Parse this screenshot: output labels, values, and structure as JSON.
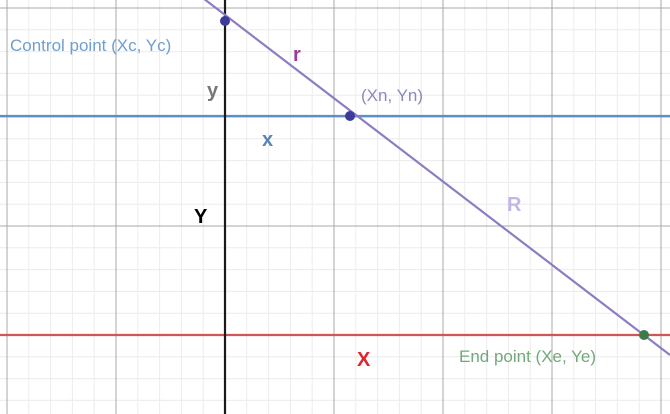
{
  "labels": {
    "control_point": "Control point (Xc, Yc)",
    "r": "r",
    "y": "y",
    "intersection": "(Xn, Yn)",
    "x": "x",
    "R": "R",
    "Y": "Y",
    "X": "X",
    "end_point": "End point (Xe, Ye)"
  },
  "colors": {
    "grid_minor": "#ececec",
    "grid_major": "#a8a8a8",
    "axis": "#1a1a1a",
    "diagonal_line": "#8e7cc3",
    "horizontal_blue": "#5b8fc9",
    "horizontal_red": "#d05555",
    "point_control": "#3b3b9a",
    "point_intersection": "#3b3b9a",
    "point_end": "#3d7a4a",
    "label_control": "#6f9fd0",
    "label_r": "#9b3b9b",
    "label_y": "#777777",
    "label_intersection": "#8a8ab8",
    "label_x": "#5b84b5",
    "label_R": "#c3b6e6",
    "label_Y": "#000000",
    "label_X": "#e0262a",
    "label_end": "#72a87c"
  }
}
